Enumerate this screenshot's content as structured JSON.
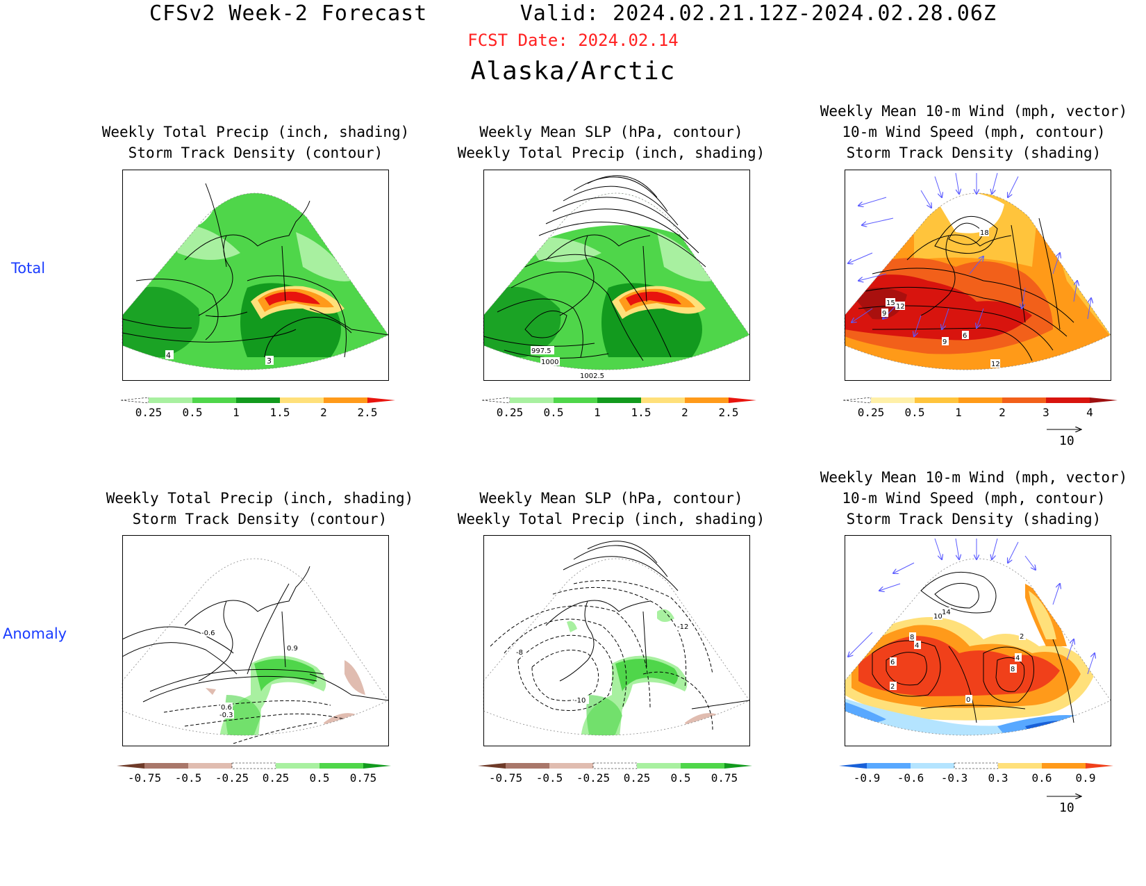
{
  "header": {
    "title_left": "CFSv2 Week-2 Forecast",
    "title_right": "Valid: 2024.02.21.12Z-2024.02.28.06Z",
    "fcst_date": "FCST Date: 2024.02.14",
    "region": "Alaska/Arctic"
  },
  "rows": [
    {
      "label": "Total"
    },
    {
      "label": "Anomaly"
    }
  ],
  "panels": {
    "p1": {
      "title1": "Weekly Total Precip (inch, shading)",
      "title2": "Storm Track Density (contour)",
      "contour_labels": [
        "4",
        "3"
      ]
    },
    "p2": {
      "title1": "Weekly Mean SLP (hPa, contour)",
      "title2": "Weekly Total Precip (inch, shading)",
      "contour_labels": [
        "997.5",
        "1000",
        "1002.5"
      ]
    },
    "p3": {
      "title0": "Weekly Mean 10-m Wind (mph, vector)",
      "title1": "10-m Wind Speed (mph, contour)",
      "title2": "Storm Track Density (shading)",
      "contour_labels": [
        "18",
        "15",
        "12",
        "9",
        "9",
        "6",
        "12"
      ],
      "vector_ref": "10"
    },
    "p4": {
      "title1": "Weekly Total Precip (inch, shading)",
      "title2": "Storm Track Density (contour)",
      "contour_labels": [
        "-0.6",
        "0.9",
        "0.6",
        "-0.3"
      ]
    },
    "p5": {
      "title1": "Weekly Mean SLP (hPa, contour)",
      "title2": "Weekly Total Precip (inch, shading)",
      "contour_labels": [
        "-12",
        "-8",
        "-10"
      ]
    },
    "p6": {
      "title0": "Weekly Mean 10-m Wind (mph, vector)",
      "title1": "10-m Wind Speed (mph, contour)",
      "title2": "Storm Track Density (shading)",
      "contour_labels": [
        "14",
        "10",
        "8",
        "4",
        "6",
        "2",
        "2",
        "4",
        "8",
        "0"
      ],
      "vector_ref": "10"
    }
  },
  "colorbars": {
    "precip_total": {
      "labels": [
        "0.25",
        "0.5",
        "1",
        "1.5",
        "2",
        "2.5"
      ],
      "colors": [
        "#ffffff",
        "#a8f0a0",
        "#4fd64a",
        "#129a1e",
        "#ffe07a",
        "#ff9a1a",
        "#e8140e"
      ]
    },
    "storm_total": {
      "labels": [
        "0.25",
        "0.5",
        "1",
        "2",
        "3",
        "4"
      ],
      "colors": [
        "#ffffff",
        "#fff0a8",
        "#ffc43c",
        "#ff9a18",
        "#f2601a",
        "#d8140e",
        "#9e0f0f"
      ]
    },
    "precip_anom": {
      "labels": [
        "-0.75",
        "-0.5",
        "-0.25",
        "0.25",
        "0.5",
        "0.75"
      ],
      "colors": [
        "#6e3a28",
        "#a9776a",
        "#e0bcb0",
        "#ffffff",
        "#a8f0a0",
        "#4fd64a",
        "#129a1e"
      ]
    },
    "storm_anom": {
      "labels": [
        "-0.9",
        "-0.6",
        "-0.3",
        "0.3",
        "0.6",
        "0.9"
      ],
      "colors": [
        "#1860d8",
        "#58a8ff",
        "#b4e4ff",
        "#ffffff",
        "#ffe07a",
        "#ff9a1a",
        "#f0401a"
      ]
    }
  },
  "colors": {
    "fcst_date": "#ff2020",
    "row_label": "#1a3cff",
    "vector": "#5a5aff"
  }
}
